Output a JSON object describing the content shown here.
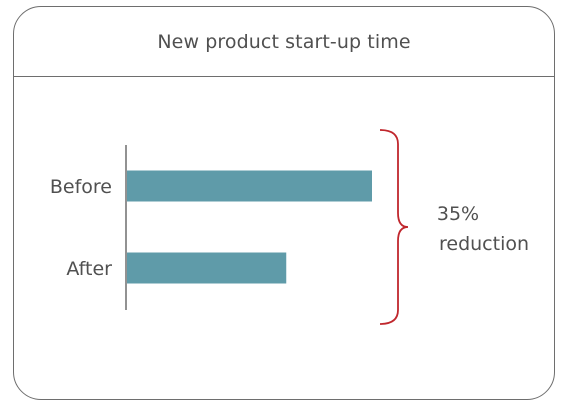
{
  "chart_data": {
    "type": "bar",
    "orientation": "horizontal",
    "title": "New product start-up time",
    "categories": [
      "Before",
      "After"
    ],
    "values": [
      100,
      65
    ],
    "xlabel": "",
    "ylabel": "",
    "xlim": [
      0,
      100
    ],
    "grid": false,
    "legend": "none",
    "bar_color": "#5f9ba9",
    "annotation": {
      "line1": "35%",
      "line2": "reduction",
      "bracket_color": "#c0272d"
    }
  }
}
